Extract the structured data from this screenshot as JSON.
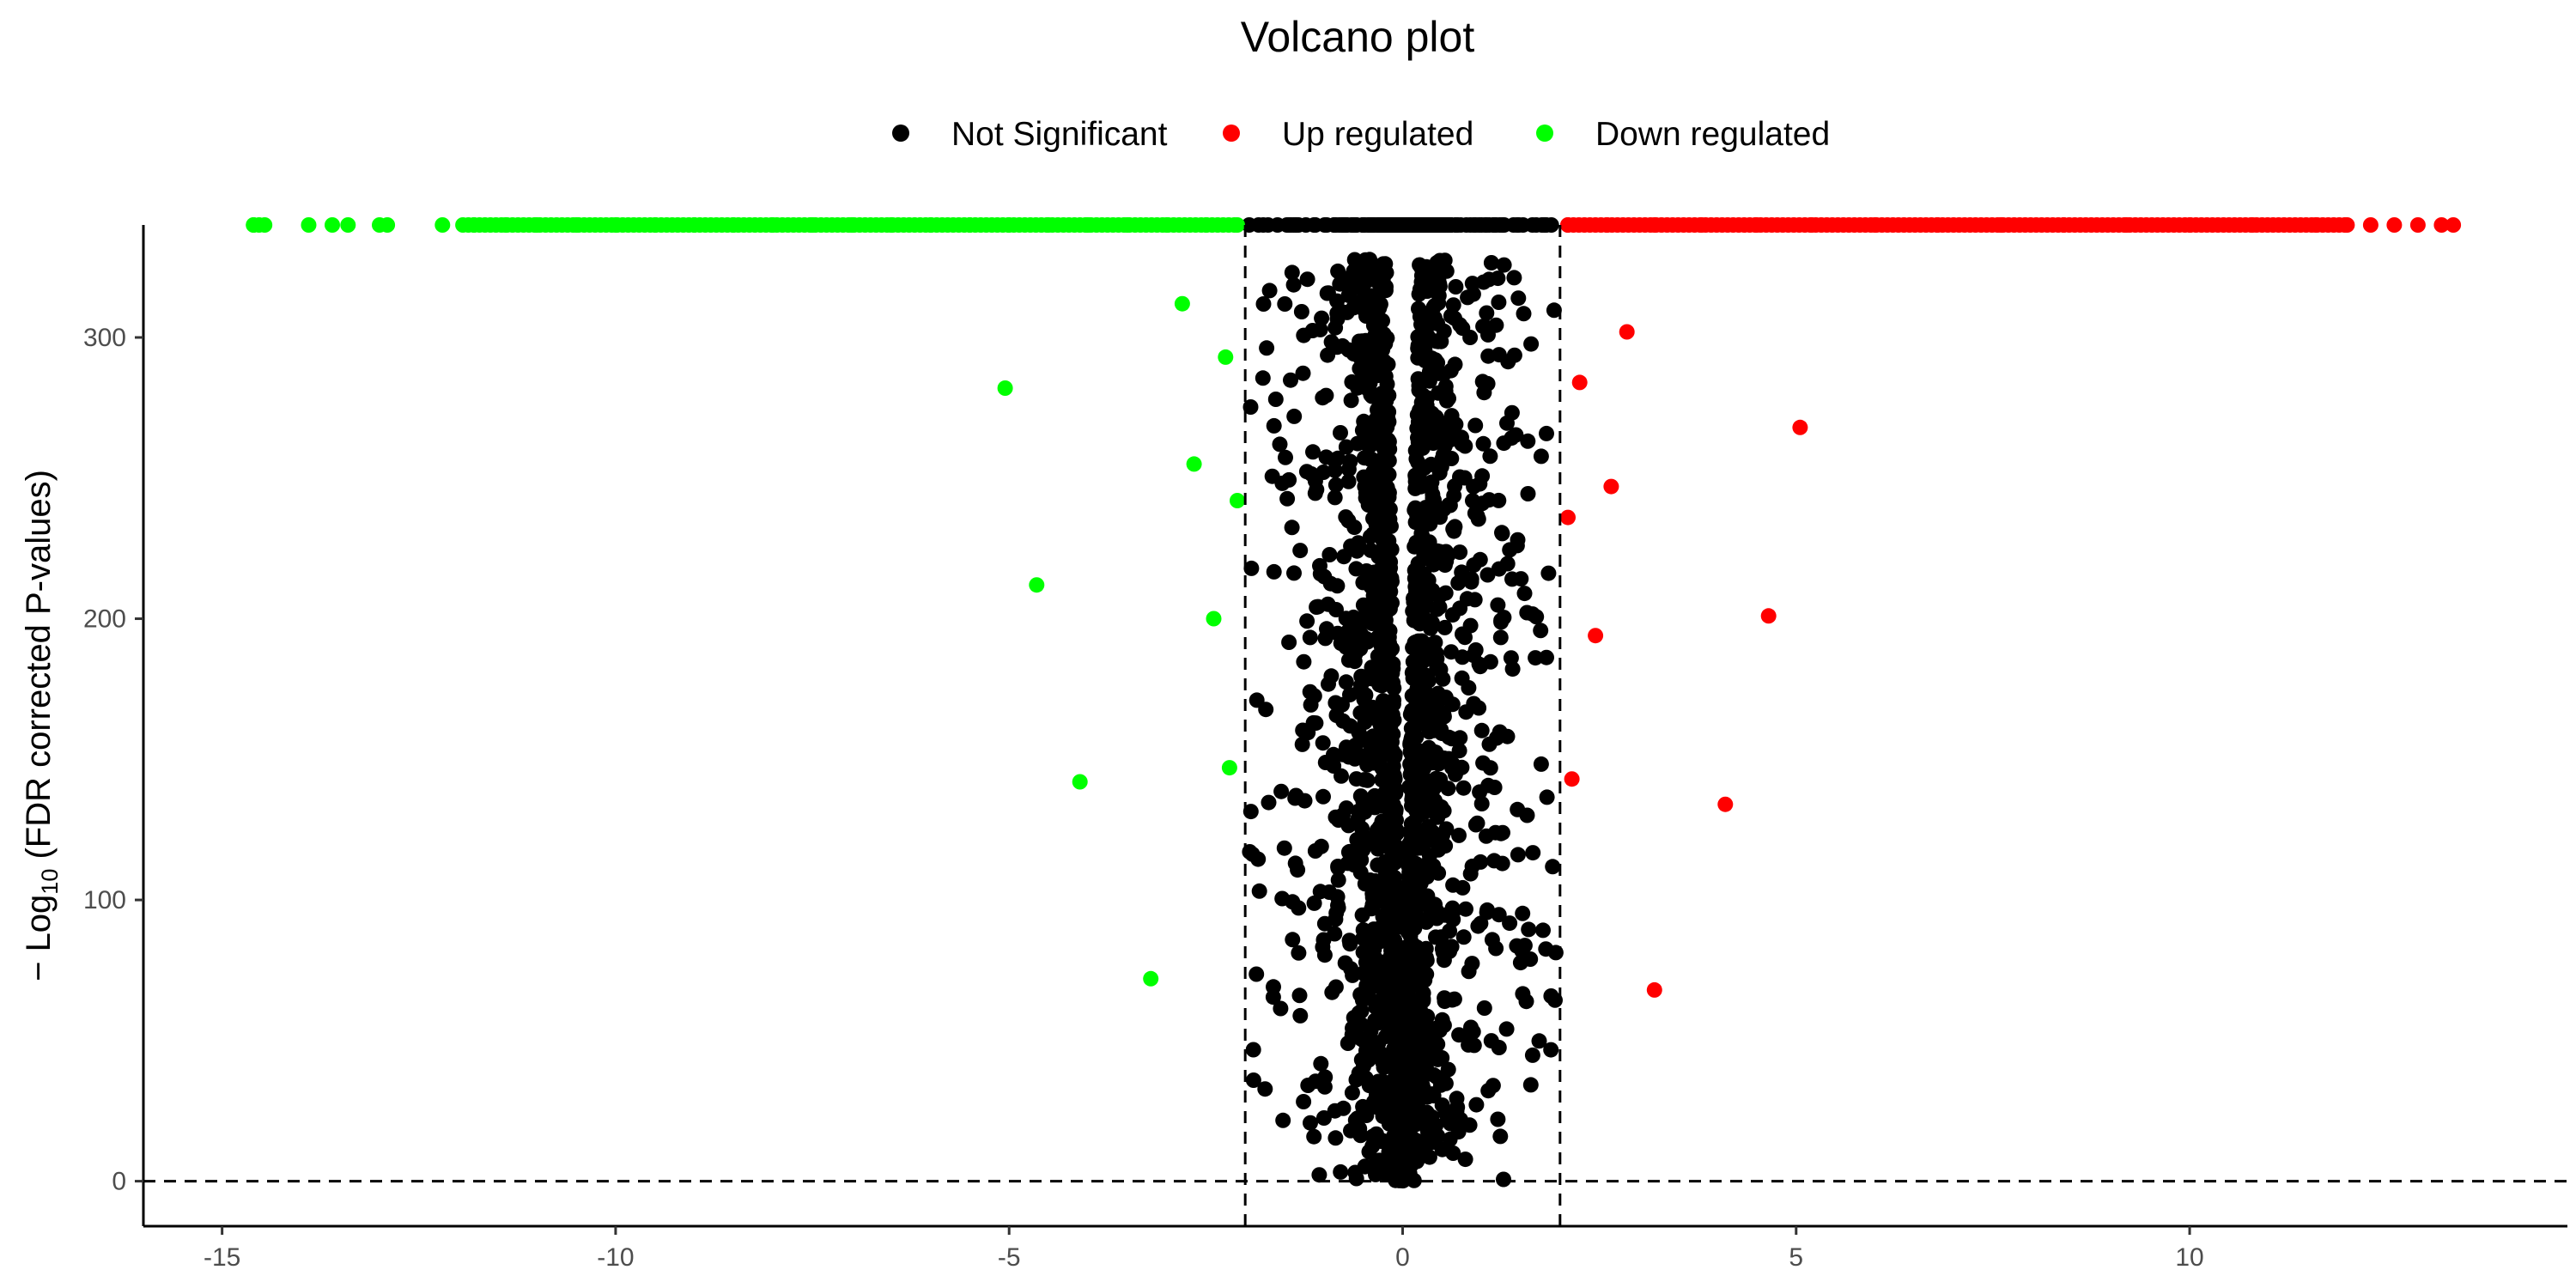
{
  "chart_data": {
    "type": "scatter",
    "title": "Volcano plot",
    "xlabel": "",
    "ylabel": {
      "prefix": "− Log",
      "subscript": "10",
      "suffix": " (FDR corrected P-values)"
    },
    "xlim": [
      -16,
      14.8
    ],
    "ylim": [
      -16,
      340
    ],
    "x_ticks": [
      -15,
      -10,
      -5,
      0,
      5,
      10
    ],
    "y_ticks": [
      0,
      100,
      200,
      300
    ],
    "threshold_lines": {
      "x": [
        -2,
        2
      ],
      "y": [
        0
      ]
    },
    "legend_position": "top",
    "legend": [
      {
        "label": "Not Significant",
        "color": "#000000"
      },
      {
        "label": "Up regulated",
        "color": "#ff0000"
      },
      {
        "label": "Down regulated",
        "color": "#00ff00"
      }
    ],
    "series": [
      {
        "name": "Down regulated",
        "color": "#00ff00",
        "points": [
          [
            -14.6,
            340
          ],
          [
            -13.9,
            340
          ],
          [
            -13.6,
            340
          ],
          [
            -13.4,
            340
          ],
          [
            -13.0,
            340
          ],
          [
            -12.9,
            340
          ],
          [
            -12.2,
            340
          ],
          [
            -11.8,
            340
          ],
          [
            -11.4,
            340
          ],
          [
            -11.0,
            340
          ],
          [
            -10.5,
            340
          ],
          [
            -10.0,
            340
          ],
          [
            -9.5,
            340
          ],
          [
            -9.0,
            340
          ],
          [
            -8.5,
            340
          ],
          [
            -8.0,
            340
          ],
          [
            -7.5,
            340
          ],
          [
            -7.0,
            340
          ],
          [
            -6.5,
            340
          ],
          [
            -6.0,
            340
          ],
          [
            -5.5,
            340
          ],
          [
            -5.0,
            340
          ],
          [
            -4.5,
            340
          ],
          [
            -4.0,
            340
          ],
          [
            -3.5,
            340
          ],
          [
            -3.0,
            340
          ],
          [
            -2.5,
            340
          ],
          [
            -2.1,
            340
          ],
          [
            -2.8,
            312
          ],
          [
            -2.25,
            293
          ],
          [
            -5.05,
            282
          ],
          [
            -2.65,
            255
          ],
          [
            -2.1,
            242
          ],
          [
            -4.65,
            212
          ],
          [
            -2.4,
            200
          ],
          [
            -4.1,
            142
          ],
          [
            -2.2,
            147
          ],
          [
            -3.2,
            72
          ]
        ]
      },
      {
        "name": "Up regulated",
        "color": "#ff0000",
        "points": [
          [
            2.1,
            340
          ],
          [
            2.6,
            340
          ],
          [
            3.2,
            340
          ],
          [
            3.8,
            340
          ],
          [
            4.5,
            340
          ],
          [
            5.2,
            340
          ],
          [
            6.0,
            340
          ],
          [
            6.8,
            340
          ],
          [
            7.6,
            340
          ],
          [
            8.4,
            340
          ],
          [
            9.2,
            340
          ],
          [
            10.0,
            340
          ],
          [
            10.8,
            340
          ],
          [
            11.6,
            340
          ],
          [
            12.0,
            340
          ],
          [
            12.3,
            340
          ],
          [
            12.6,
            340
          ],
          [
            12.9,
            340
          ],
          [
            13.2,
            340
          ],
          [
            13.35,
            340
          ],
          [
            2.85,
            302
          ],
          [
            2.25,
            284
          ],
          [
            5.05,
            268
          ],
          [
            2.65,
            247
          ],
          [
            2.1,
            236
          ],
          [
            4.65,
            201
          ],
          [
            2.45,
            194
          ],
          [
            2.15,
            143
          ],
          [
            4.1,
            134
          ],
          [
            3.2,
            68
          ]
        ]
      }
    ],
    "not_significant": {
      "name": "Not Significant",
      "color": "#000000",
      "x_range": [
        -1.95,
        1.95
      ],
      "y_max": 340,
      "point_count": 2200
    }
  }
}
